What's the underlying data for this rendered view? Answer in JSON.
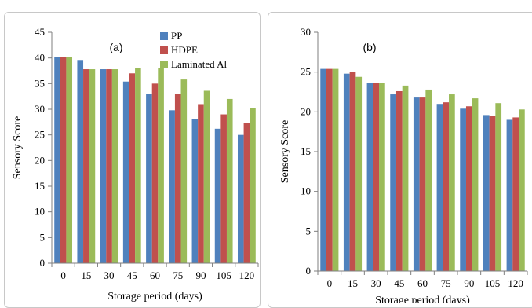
{
  "chart_data": [
    {
      "type": "bar",
      "panel_label": "(a)",
      "categories": [
        "0",
        "15",
        "30",
        "45",
        "60",
        "75",
        "90",
        "105",
        "120"
      ],
      "series": [
        {
          "name": "PP",
          "color": "#4f81bd",
          "values": [
            40.2,
            39.6,
            37.8,
            35.4,
            33.0,
            29.8,
            28.1,
            26.2,
            25.0
          ]
        },
        {
          "name": "HDPE",
          "color": "#c0504d",
          "values": [
            40.2,
            37.8,
            37.8,
            37.0,
            35.0,
            33.0,
            31.0,
            29.0,
            27.3
          ]
        },
        {
          "name": "Laminated Al",
          "color": "#9bbb59",
          "values": [
            40.2,
            37.8,
            37.8,
            38.0,
            38.0,
            35.8,
            33.6,
            32.0,
            30.2
          ]
        }
      ],
      "xlabel": "Storage period (days)",
      "ylabel": "Sensory Score",
      "ylim": [
        0,
        45
      ],
      "yticks": [
        "0",
        "5",
        "10",
        "15",
        "20",
        "25",
        "30",
        "35",
        "40",
        "45"
      ],
      "legend_position": "top-right"
    },
    {
      "type": "bar",
      "panel_label": "(b)",
      "categories": [
        "0",
        "15",
        "30",
        "45",
        "60",
        "75",
        "90",
        "105",
        "120"
      ],
      "series": [
        {
          "name": "PP",
          "color": "#4f81bd",
          "values": [
            25.4,
            24.8,
            23.6,
            22.2,
            21.8,
            21.0,
            20.4,
            19.6,
            19.0
          ]
        },
        {
          "name": "HDPE",
          "color": "#c0504d",
          "values": [
            25.4,
            25.0,
            23.6,
            22.6,
            21.8,
            21.2,
            20.7,
            19.5,
            19.3
          ]
        },
        {
          "name": "Laminated Al",
          "color": "#9bbb59",
          "values": [
            25.4,
            24.4,
            23.6,
            23.3,
            22.8,
            22.2,
            21.7,
            21.1,
            20.3
          ]
        }
      ],
      "xlabel": "Storage period (days)",
      "ylabel": "Sensory Score",
      "ylim": [
        0,
        30
      ],
      "yticks": [
        "0",
        "5",
        "10",
        "15",
        "20",
        "25",
        "30"
      ]
    }
  ]
}
